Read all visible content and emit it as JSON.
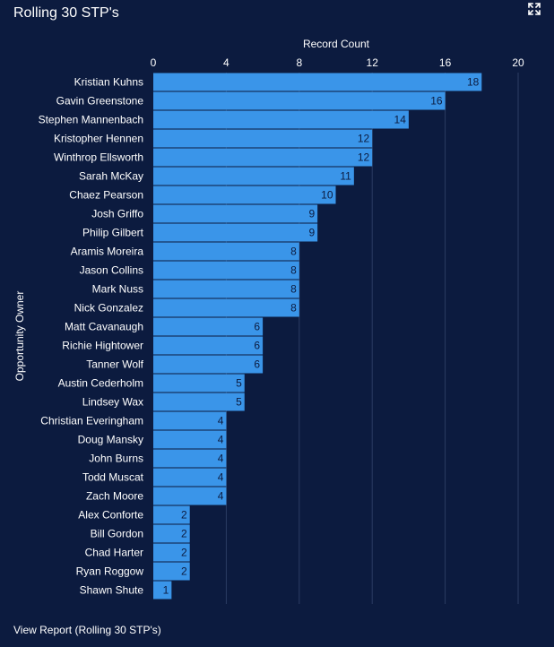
{
  "card": {
    "title": "Rolling 30 STP's",
    "expand_icon": "expand-arrows-icon",
    "footer_link": "View Report (Rolling 30 STP's)"
  },
  "colors": {
    "background": "#0c1b3f",
    "bar": "#3a95e9",
    "grid": "#2c3d63",
    "text": "#ffffff",
    "value_label": "#0c1b3f"
  },
  "chart_data": {
    "type": "bar",
    "orientation": "horizontal",
    "xlabel": "Record Count",
    "ylabel": "Opportunity Owner",
    "xlim": [
      0,
      20
    ],
    "x_ticks": [
      0,
      4,
      8,
      12,
      16,
      20
    ],
    "x_axis_position": "top",
    "grid": true,
    "categories": [
      "Kristian Kuhns",
      "Gavin Greenstone",
      "Stephen Mannenbach",
      "Kristopher Hennen",
      "Winthrop Ellsworth",
      "Sarah McKay",
      "Chaez Pearson",
      "Josh Griffo",
      "Philip Gilbert",
      "Aramis Moreira",
      "Jason Collins",
      "Mark Nuss",
      "Nick Gonzalez",
      "Matt Cavanaugh",
      "Richie Hightower",
      "Tanner Wolf",
      "Austin Cederholm",
      "Lindsey Wax",
      "Christian Everingham",
      "Doug Mansky",
      "John Burns",
      "Todd Muscat",
      "Zach Moore",
      "Alex Conforte",
      "Bill Gordon",
      "Chad Harter",
      "Ryan Roggow",
      "Shawn Shute"
    ],
    "values": [
      18,
      16,
      14,
      12,
      12,
      11,
      10,
      9,
      9,
      8,
      8,
      8,
      8,
      6,
      6,
      6,
      5,
      5,
      4,
      4,
      4,
      4,
      4,
      2,
      2,
      2,
      2,
      1
    ]
  }
}
